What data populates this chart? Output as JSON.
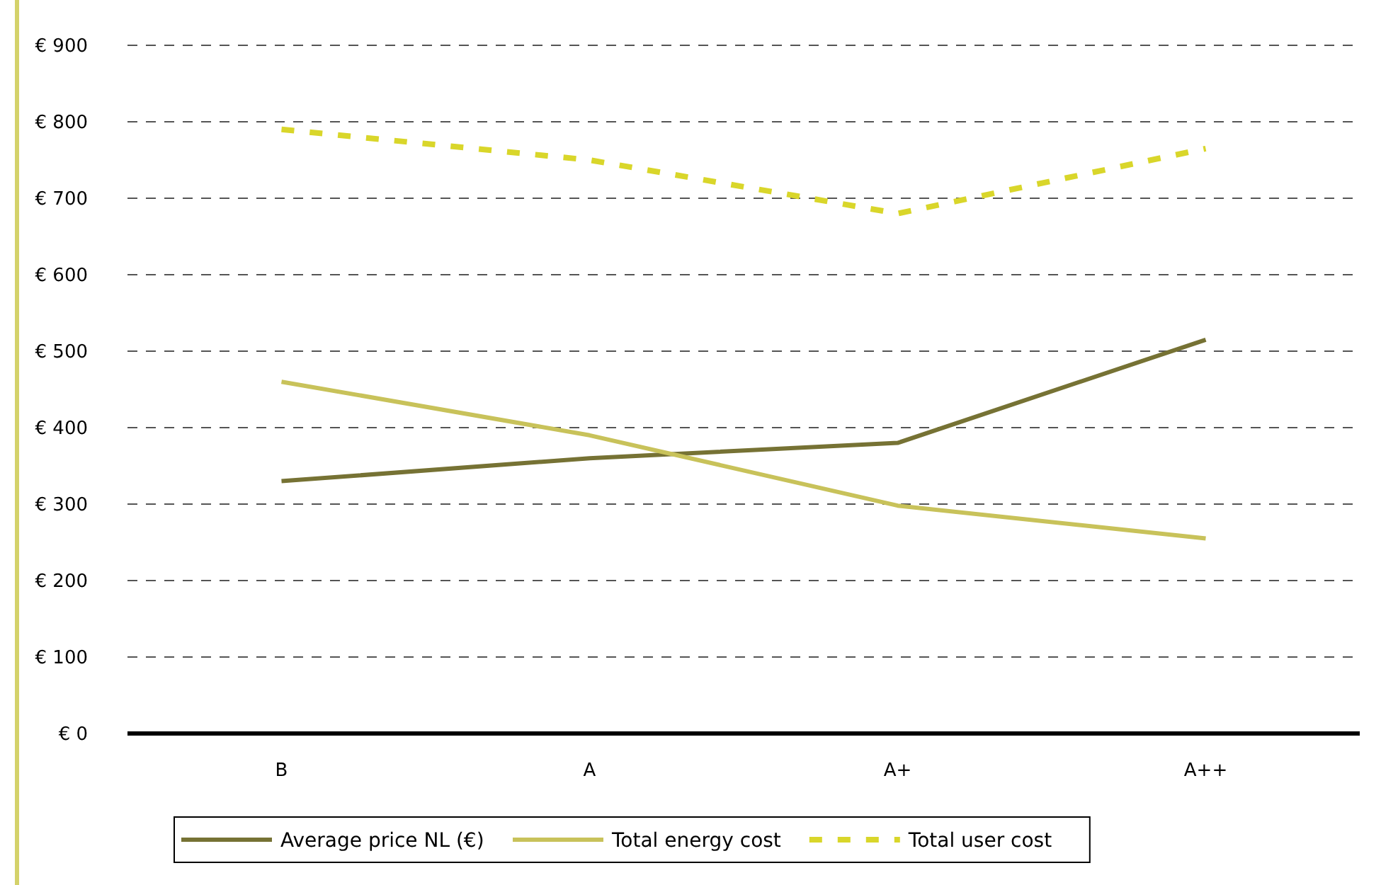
{
  "chart_data": {
    "type": "line",
    "categories": [
      "B",
      "A",
      "A+",
      "A++"
    ],
    "series": [
      {
        "name": "Average price NL (€)",
        "color": "#767234",
        "values": [
          330,
          360,
          380,
          515
        ],
        "line_style": "solid"
      },
      {
        "name": "Total energy cost",
        "color": "#c8c25a",
        "values": [
          460,
          390,
          298,
          255
        ],
        "line_style": "solid"
      },
      {
        "name": "Total user cost",
        "color": "#d9d62a",
        "values": [
          790,
          750,
          680,
          765
        ],
        "line_style": "dashed"
      }
    ],
    "ylim": [
      0,
      900
    ],
    "yticks": [
      {
        "value": 0,
        "label": "€ 0"
      },
      {
        "value": 100,
        "label": "€ 100"
      },
      {
        "value": 200,
        "label": "€ 200"
      },
      {
        "value": 300,
        "label": "€ 300"
      },
      {
        "value": 400,
        "label": "€ 400"
      },
      {
        "value": 500,
        "label": "€ 500"
      },
      {
        "value": 600,
        "label": "€ 600"
      },
      {
        "value": 700,
        "label": "€ 700"
      },
      {
        "value": 800,
        "label": "€ 800"
      },
      {
        "value": 900,
        "label": "€ 900"
      }
    ],
    "grid": "y",
    "legend": "bottom",
    "marker": "none"
  }
}
